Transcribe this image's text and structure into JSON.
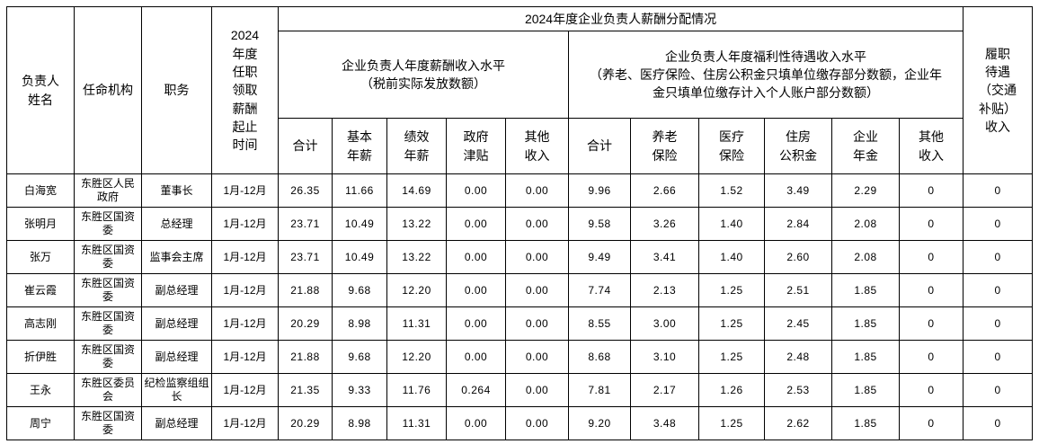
{
  "page": {
    "background": "#ffffff",
    "border_color": "#000000",
    "text_color": "#000000"
  },
  "header": {
    "name": "负责人\n姓名",
    "org": "任命机构",
    "position": "职务",
    "period": "2024\n年度\n任职\n领取\n薪酬\n起止\n时间",
    "distribution": "2024年度企业负责人薪酬分配情况",
    "salary_income": "企业负责人年度薪酬收入水平\n（税前实际发放数额）",
    "welfare_income": "企业负责人年度福利性待遇收入水平\n（养老、医疗保险、住房公积金只填单位缴存部分数额，企业年\n金只填单位缴存计入个人账户部分数额）",
    "duty_allowance": "履职\n待遇\n（交通\n补贴）\n收入",
    "sub": [
      "合计",
      "基本\n年薪",
      "绩效\n年薪",
      "政府\n津贴",
      "其他\n收入",
      "合计",
      "养老\n保险",
      "医疗\n保险",
      "住房\n公积金",
      "企业\n年金",
      "其他\n收入"
    ]
  },
  "rows": [
    {
      "cells": [
        "白海宽",
        "东胜区人民政府",
        "董事长",
        "1月-12月",
        "26.35",
        "11.66",
        "14.69",
        "0.00",
        "0.00",
        "9.96",
        "2.66",
        "1.52",
        "3.49",
        "2.29",
        "0",
        "0"
      ]
    },
    {
      "cells": [
        "张明月",
        "东胜区国资委",
        "总经理",
        "1月-12月",
        "23.71",
        "10.49",
        "13.22",
        "0.00",
        "0.00",
        "9.58",
        "3.26",
        "1.40",
        "2.84",
        "2.08",
        "0",
        "0"
      ]
    },
    {
      "cells": [
        "张万",
        "东胜区国资委",
        "监事会主席",
        "1月-12月",
        "23.71",
        "10.49",
        "13.22",
        "0.00",
        "0.00",
        "9.49",
        "3.41",
        "1.40",
        "2.60",
        "2.08",
        "0",
        "0"
      ]
    },
    {
      "cells": [
        "崔云霞",
        "东胜区国资委",
        "副总经理",
        "1月-12月",
        "21.88",
        "9.68",
        "12.20",
        "0.00",
        "0.00",
        "7.74",
        "2.13",
        "1.25",
        "2.51",
        "1.85",
        "0",
        "0"
      ]
    },
    {
      "cells": [
        "高志刚",
        "东胜区国资委",
        "副总经理",
        "1月-12月",
        "20.29",
        "8.98",
        "11.31",
        "0.00",
        "0.00",
        "8.55",
        "3.00",
        "1.25",
        "2.45",
        "1.85",
        "0",
        "0"
      ]
    },
    {
      "cells": [
        "折伊胜",
        "东胜区国资委",
        "副总经理",
        "1月-12月",
        "21.88",
        "9.68",
        "12.20",
        "0.00",
        "0.00",
        "8.68",
        "3.10",
        "1.25",
        "2.48",
        "1.85",
        "0",
        "0"
      ]
    },
    {
      "cells": [
        "王永",
        "东胜区委员会",
        "纪检监察组组长",
        "1月-12月",
        "21.35",
        "9.33",
        "11.76",
        "0.264",
        "0.00",
        "7.81",
        "2.17",
        "1.26",
        "2.53",
        "1.85",
        "0",
        "0"
      ]
    },
    {
      "cells": [
        "周宁",
        "东胜区国资委",
        "副总经理",
        "1月-12月",
        "20.29",
        "8.98",
        "11.31",
        "0.00",
        "0.00",
        "9.20",
        "3.48",
        "1.25",
        "2.62",
        "1.85",
        "0",
        "0"
      ]
    }
  ]
}
